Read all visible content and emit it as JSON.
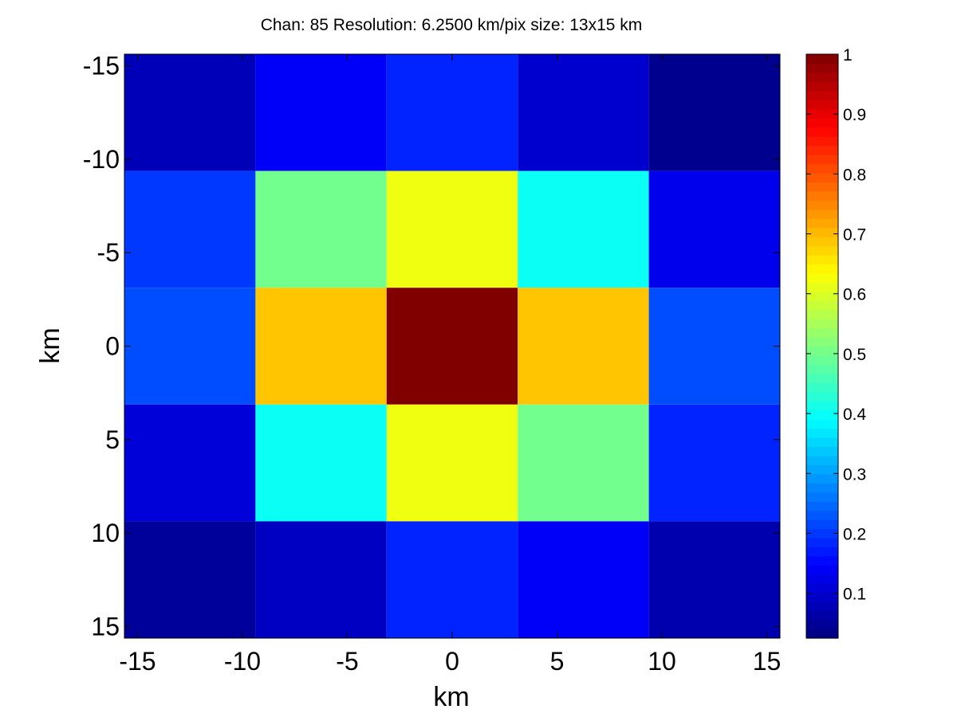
{
  "chart_data": {
    "type": "heatmap",
    "title": "Chan: 85  Resolution: 6.2500 km/pix  size: 13x15 km",
    "xlabel": "km",
    "ylabel": "km",
    "xlim": [
      -15.625,
      15.625
    ],
    "ylim": [
      -15.625,
      15.625
    ],
    "y_reversed": true,
    "x_ticks": [
      -15,
      -10,
      -5,
      0,
      5,
      10,
      15
    ],
    "y_ticks": [
      -15,
      -10,
      -5,
      0,
      5,
      10,
      15
    ],
    "x_tick_labels": [
      "-15",
      "-10",
      "-5",
      "0",
      "5",
      "10",
      "15"
    ],
    "y_tick_labels": [
      "-15",
      "-10",
      "-5",
      "0",
      "5",
      "10",
      "15"
    ],
    "x_centers": [
      -12.5,
      -6.25,
      0,
      6.25,
      12.5
    ],
    "y_centers": [
      -12.5,
      -6.25,
      0,
      6.25,
      12.5
    ],
    "cell_width": 6.25,
    "values": [
      [
        0.08,
        0.14,
        0.18,
        0.1,
        0.04
      ],
      [
        0.2,
        0.5,
        0.62,
        0.4,
        0.13
      ],
      [
        0.22,
        0.69,
        1.0,
        0.69,
        0.22
      ],
      [
        0.11,
        0.4,
        0.62,
        0.5,
        0.18
      ],
      [
        0.05,
        0.09,
        0.18,
        0.14,
        0.07
      ]
    ],
    "colormap": "jet",
    "colorbar": {
      "min": 0.025,
      "max": 1.0,
      "ticks": [
        0.1,
        0.2,
        0.3,
        0.4,
        0.5,
        0.6,
        0.7,
        0.8,
        0.9,
        1
      ],
      "tick_labels": [
        "0.1",
        "0.2",
        "0.3",
        "0.4",
        "0.5",
        "0.6",
        "0.7",
        "0.8",
        "0.9",
        "1"
      ],
      "steps": 64
    },
    "grid": false
  }
}
